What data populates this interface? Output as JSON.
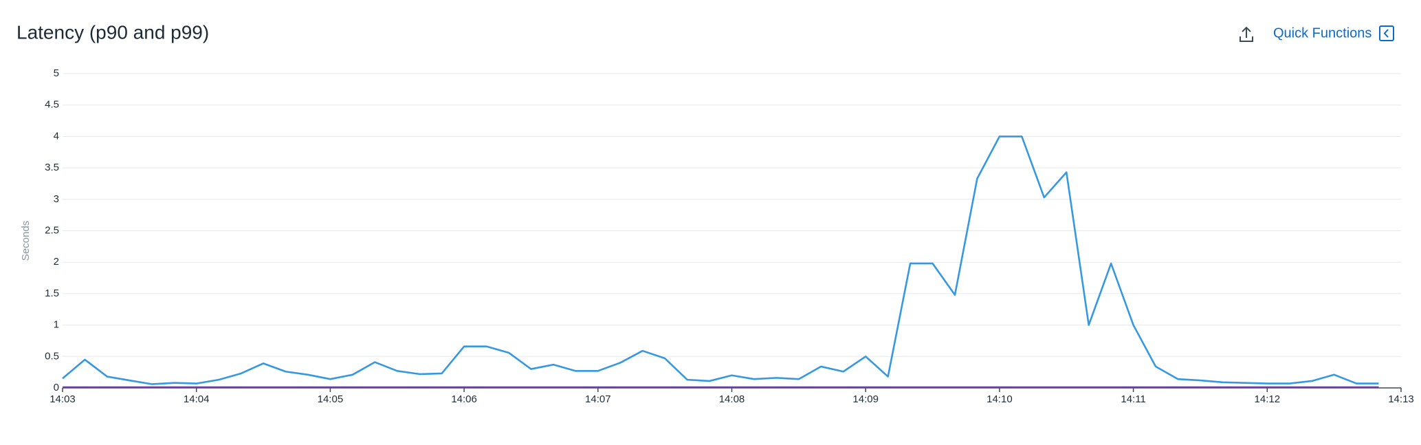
{
  "toolbar": {
    "quick_functions": "Quick Functions"
  },
  "chart_data": {
    "type": "line",
    "title": "Latency (p90 and p99)",
    "y_label": "Seconds",
    "x": [
      3,
      3.1667,
      3.3333,
      3.5,
      3.6667,
      3.8333,
      4,
      4.1667,
      4.3333,
      4.5,
      4.6667,
      4.8333,
      5,
      5.1667,
      5.3333,
      5.5,
      5.6667,
      5.8333,
      6,
      6.1667,
      6.3333,
      6.5,
      6.6667,
      6.8333,
      7,
      7.1667,
      7.3333,
      7.5,
      7.6667,
      7.8333,
      8,
      8.1667,
      8.3333,
      8.5,
      8.6667,
      8.8333,
      9,
      9.1667,
      9.3333,
      9.5,
      9.6667,
      9.8333,
      10,
      10.1667,
      10.3333,
      10.5,
      10.6667,
      10.8333,
      11,
      11.1667,
      11.3333,
      11.5,
      11.6667,
      11.8333,
      12,
      12.1667,
      12.3333,
      12.5,
      12.6667,
      12.8333
    ],
    "series": [
      {
        "color": "#3598e0",
        "values": [
          0.15,
          0.45,
          0.18,
          0.12,
          0.06,
          0.08,
          0.07,
          0.13,
          0.23,
          0.39,
          0.26,
          0.21,
          0.14,
          0.21,
          0.41,
          0.27,
          0.22,
          0.23,
          0.66,
          0.66,
          0.56,
          0.3,
          0.37,
          0.27,
          0.27,
          0.4,
          0.59,
          0.47,
          0.13,
          0.11,
          0.2,
          0.14,
          0.16,
          0.14,
          0.34,
          0.26,
          0.5,
          0.18,
          1.98,
          1.98,
          1.48,
          3.33,
          4,
          4,
          3.03,
          3.43,
          1,
          1.98,
          1,
          0.34,
          0.14,
          0.12,
          0.09,
          0.08,
          0.07,
          0.07,
          0.11,
          0.21,
          0.07,
          0.07
        ]
      },
      {
        "color": "#6a3fa0",
        "values": [
          0.01,
          0.01,
          0.01,
          0.01,
          0.01,
          0.01,
          0.01,
          0.01,
          0.01,
          0.01,
          0.01,
          0.01,
          0.01,
          0.01,
          0.01,
          0.01,
          0.01,
          0.01,
          0.01,
          0.01,
          0.01,
          0.01,
          0.01,
          0.01,
          0.01,
          0.01,
          0.01,
          0.01,
          0.01,
          0.01,
          0.01,
          0.01,
          0.01,
          0.01,
          0.01,
          0.01,
          0.01,
          0.01,
          0.01,
          0.01,
          0.01,
          0.01,
          0.01,
          0.01,
          0.01,
          0.01,
          0.01,
          0.01,
          0.01,
          0.01,
          0.01,
          0.01,
          0.01,
          0.01,
          0.01,
          0.01,
          0.01,
          0.01,
          0.01,
          0.01
        ]
      }
    ],
    "xlim": [
      3,
      13
    ],
    "xticks": [
      {
        "value": 3,
        "label": "14:03"
      },
      {
        "value": 4,
        "label": "14:04"
      },
      {
        "value": 5,
        "label": "14:05"
      },
      {
        "value": 6,
        "label": "14:06"
      },
      {
        "value": 7,
        "label": "14:07"
      },
      {
        "value": 8,
        "label": "14:08"
      },
      {
        "value": 9,
        "label": "14:09"
      },
      {
        "value": 10,
        "label": "14:10"
      },
      {
        "value": 11,
        "label": "14:11"
      },
      {
        "value": 12,
        "label": "14:12"
      },
      {
        "value": 13,
        "label": "14:13"
      }
    ],
    "ylim": [
      0,
      5
    ],
    "yticks": [
      0,
      0.5,
      1,
      1.5,
      2,
      2.5,
      3,
      3.5,
      4,
      4.5,
      5
    ],
    "grid": true
  }
}
